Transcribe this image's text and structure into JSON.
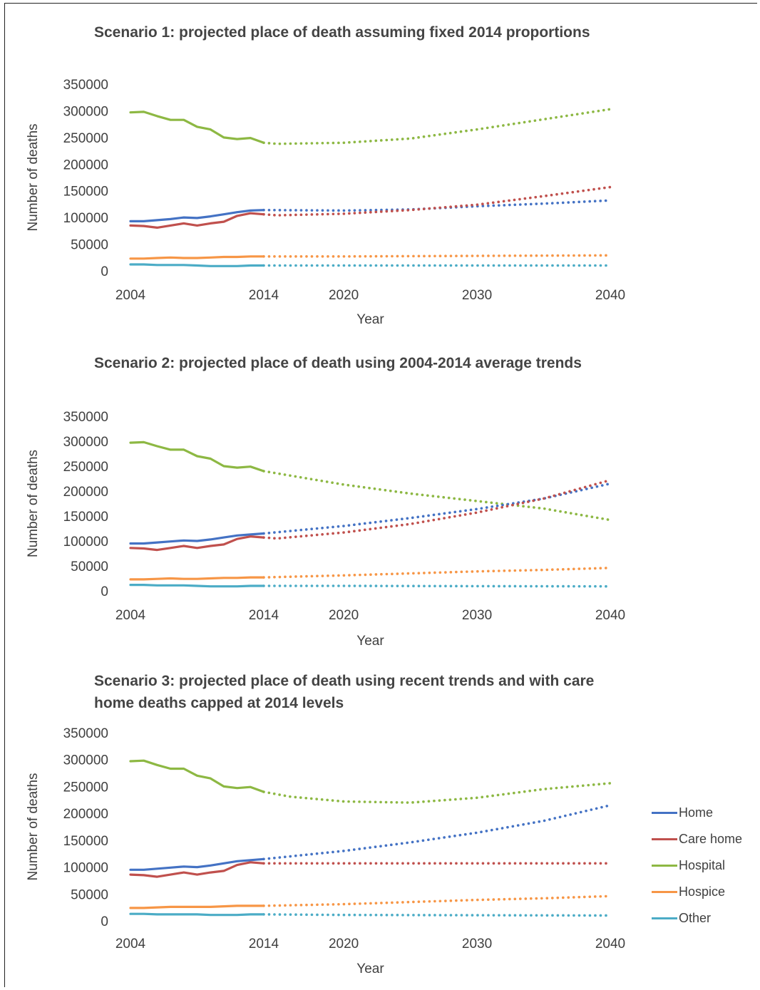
{
  "colors": {
    "Home": "#4472c4",
    "Care home": "#c0504d",
    "Hospital": "#8db843",
    "Hospice": "#f79646",
    "Other": "#4bacc6"
  },
  "legend": [
    "Home",
    "Care home",
    "Hospital",
    "Hospice",
    "Other"
  ],
  "chart_data": [
    {
      "type": "line",
      "title": "Scenario 1: projected place of death assuming fixed 2014 proportions",
      "xlabel": "Year",
      "ylabel": "Number of deaths",
      "xticks": [
        2004,
        2014,
        2020,
        2030,
        2040
      ],
      "yticks": [
        0,
        50000,
        100000,
        150000,
        200000,
        250000,
        300000,
        350000
      ],
      "xlim": [
        2004,
        2040
      ],
      "ylim": [
        0,
        350000
      ],
      "solid_until": 2014,
      "series": [
        {
          "name": "Hospital",
          "points": [
            [
              2004,
              297000
            ],
            [
              2005,
              298000
            ],
            [
              2006,
              290000
            ],
            [
              2007,
              283000
            ],
            [
              2008,
              283000
            ],
            [
              2009,
              270000
            ],
            [
              2010,
              265000
            ],
            [
              2011,
              250000
            ],
            [
              2012,
              247000
            ],
            [
              2013,
              249000
            ],
            [
              2014,
              240000
            ],
            [
              2015,
              238000
            ],
            [
              2020,
              240000
            ],
            [
              2025,
              248000
            ],
            [
              2030,
              265000
            ],
            [
              2035,
              284000
            ],
            [
              2040,
              303000
            ]
          ]
        },
        {
          "name": "Home",
          "points": [
            [
              2004,
              93000
            ],
            [
              2005,
              93000
            ],
            [
              2006,
              95000
            ],
            [
              2007,
              97000
            ],
            [
              2008,
              100000
            ],
            [
              2009,
              99000
            ],
            [
              2010,
              102000
            ],
            [
              2011,
              106000
            ],
            [
              2012,
              110000
            ],
            [
              2013,
              113000
            ],
            [
              2014,
              114000
            ],
            [
              2020,
              113000
            ],
            [
              2025,
              115000
            ],
            [
              2030,
              121000
            ],
            [
              2035,
              126000
            ],
            [
              2040,
              132000
            ]
          ]
        },
        {
          "name": "Care home",
          "points": [
            [
              2004,
              85000
            ],
            [
              2005,
              84000
            ],
            [
              2006,
              81000
            ],
            [
              2007,
              85000
            ],
            [
              2008,
              89000
            ],
            [
              2009,
              85000
            ],
            [
              2010,
              89000
            ],
            [
              2011,
              92000
            ],
            [
              2012,
              103000
            ],
            [
              2013,
              108000
            ],
            [
              2014,
              106000
            ],
            [
              2015,
              104000
            ],
            [
              2020,
              107000
            ],
            [
              2025,
              114000
            ],
            [
              2030,
              124000
            ],
            [
              2035,
              140000
            ],
            [
              2040,
              157000
            ]
          ]
        },
        {
          "name": "Hospice",
          "points": [
            [
              2004,
              23000
            ],
            [
              2005,
              23000
            ],
            [
              2006,
              24000
            ],
            [
              2007,
              25000
            ],
            [
              2008,
              24000
            ],
            [
              2009,
              24000
            ],
            [
              2010,
              25000
            ],
            [
              2011,
              26000
            ],
            [
              2012,
              26000
            ],
            [
              2013,
              27000
            ],
            [
              2014,
              27000
            ],
            [
              2020,
              27000
            ],
            [
              2030,
              28000
            ],
            [
              2040,
              29000
            ]
          ]
        },
        {
          "name": "Other",
          "points": [
            [
              2004,
              12000
            ],
            [
              2005,
              12000
            ],
            [
              2006,
              11000
            ],
            [
              2007,
              11000
            ],
            [
              2008,
              11000
            ],
            [
              2009,
              10000
            ],
            [
              2010,
              9000
            ],
            [
              2011,
              9000
            ],
            [
              2012,
              9000
            ],
            [
              2013,
              10000
            ],
            [
              2014,
              10000
            ],
            [
              2020,
              10000
            ],
            [
              2030,
              10000
            ],
            [
              2040,
              10000
            ]
          ]
        }
      ]
    },
    {
      "type": "line",
      "title": "Scenario 2: projected place of death using 2004-2014 average trends",
      "xlabel": "Year",
      "ylabel": "Number of deaths",
      "xticks": [
        2004,
        2014,
        2020,
        2030,
        2040
      ],
      "yticks": [
        0,
        50000,
        100000,
        150000,
        200000,
        250000,
        300000,
        350000
      ],
      "xlim": [
        2004,
        2040
      ],
      "ylim": [
        0,
        350000
      ],
      "solid_until": 2014,
      "series": [
        {
          "name": "Hospital",
          "points": [
            [
              2004,
              297000
            ],
            [
              2005,
              298000
            ],
            [
              2006,
              290000
            ],
            [
              2007,
              283000
            ],
            [
              2008,
              283000
            ],
            [
              2009,
              270000
            ],
            [
              2010,
              265000
            ],
            [
              2011,
              250000
            ],
            [
              2012,
              247000
            ],
            [
              2013,
              249000
            ],
            [
              2014,
              240000
            ],
            [
              2020,
              213000
            ],
            [
              2025,
              195000
            ],
            [
              2030,
              180000
            ],
            [
              2035,
              165000
            ],
            [
              2040,
              142000
            ]
          ]
        },
        {
          "name": "Home",
          "points": [
            [
              2004,
              95000
            ],
            [
              2005,
              95000
            ],
            [
              2006,
              97000
            ],
            [
              2007,
              99000
            ],
            [
              2008,
              101000
            ],
            [
              2009,
              100000
            ],
            [
              2010,
              103000
            ],
            [
              2011,
              107000
            ],
            [
              2012,
              111000
            ],
            [
              2013,
              113000
            ],
            [
              2014,
              115000
            ],
            [
              2020,
              130000
            ],
            [
              2025,
              146000
            ],
            [
              2030,
              164000
            ],
            [
              2035,
              185000
            ],
            [
              2040,
              215000
            ]
          ]
        },
        {
          "name": "Care home",
          "points": [
            [
              2004,
              86000
            ],
            [
              2005,
              85000
            ],
            [
              2006,
              82000
            ],
            [
              2007,
              86000
            ],
            [
              2008,
              90000
            ],
            [
              2009,
              86000
            ],
            [
              2010,
              90000
            ],
            [
              2011,
              93000
            ],
            [
              2012,
              104000
            ],
            [
              2013,
              109000
            ],
            [
              2014,
              107000
            ],
            [
              2015,
              105000
            ],
            [
              2020,
              117000
            ],
            [
              2025,
              134000
            ],
            [
              2030,
              157000
            ],
            [
              2035,
              185000
            ],
            [
              2040,
              222000
            ]
          ]
        },
        {
          "name": "Hospice",
          "points": [
            [
              2004,
              23000
            ],
            [
              2005,
              23000
            ],
            [
              2006,
              24000
            ],
            [
              2007,
              25000
            ],
            [
              2008,
              24000
            ],
            [
              2009,
              24000
            ],
            [
              2010,
              25000
            ],
            [
              2011,
              26000
            ],
            [
              2012,
              26000
            ],
            [
              2013,
              27000
            ],
            [
              2014,
              27000
            ],
            [
              2020,
              31000
            ],
            [
              2025,
              35000
            ],
            [
              2030,
              39000
            ],
            [
              2035,
              42000
            ],
            [
              2040,
              46000
            ]
          ]
        },
        {
          "name": "Other",
          "points": [
            [
              2004,
              12000
            ],
            [
              2005,
              12000
            ],
            [
              2006,
              11000
            ],
            [
              2007,
              11000
            ],
            [
              2008,
              11000
            ],
            [
              2009,
              10000
            ],
            [
              2010,
              9000
            ],
            [
              2011,
              9000
            ],
            [
              2012,
              9000
            ],
            [
              2013,
              10000
            ],
            [
              2014,
              10000
            ],
            [
              2020,
              10000
            ],
            [
              2030,
              9500
            ],
            [
              2040,
              9000
            ]
          ]
        }
      ]
    },
    {
      "type": "line",
      "title": "Scenario 3: projected place of death using recent trends and with care home deaths capped at 2014 levels",
      "xlabel": "Year",
      "ylabel": "Number of deaths",
      "xticks": [
        2004,
        2014,
        2020,
        2030,
        2040
      ],
      "yticks": [
        0,
        50000,
        100000,
        150000,
        200000,
        250000,
        300000,
        350000
      ],
      "xlim": [
        2004,
        2040
      ],
      "ylim": [
        0,
        350000
      ],
      "solid_until": 2014,
      "series": [
        {
          "name": "Hospital",
          "points": [
            [
              2004,
              297000
            ],
            [
              2005,
              298000
            ],
            [
              2006,
              290000
            ],
            [
              2007,
              283000
            ],
            [
              2008,
              283000
            ],
            [
              2009,
              270000
            ],
            [
              2010,
              265000
            ],
            [
              2011,
              250000
            ],
            [
              2012,
              247000
            ],
            [
              2013,
              249000
            ],
            [
              2014,
              240000
            ],
            [
              2016,
              231000
            ],
            [
              2020,
              222000
            ],
            [
              2025,
              220000
            ],
            [
              2030,
              229000
            ],
            [
              2035,
              245000
            ],
            [
              2040,
              256000
            ]
          ]
        },
        {
          "name": "Home",
          "points": [
            [
              2004,
              95000
            ],
            [
              2005,
              95000
            ],
            [
              2006,
              97000
            ],
            [
              2007,
              99000
            ],
            [
              2008,
              101000
            ],
            [
              2009,
              100000
            ],
            [
              2010,
              103000
            ],
            [
              2011,
              107000
            ],
            [
              2012,
              111000
            ],
            [
              2013,
              113000
            ],
            [
              2014,
              115000
            ],
            [
              2020,
              130000
            ],
            [
              2025,
              146000
            ],
            [
              2030,
              164000
            ],
            [
              2035,
              186000
            ],
            [
              2040,
              215000
            ]
          ]
        },
        {
          "name": "Care home",
          "points": [
            [
              2004,
              86000
            ],
            [
              2005,
              85000
            ],
            [
              2006,
              82000
            ],
            [
              2007,
              86000
            ],
            [
              2008,
              90000
            ],
            [
              2009,
              86000
            ],
            [
              2010,
              90000
            ],
            [
              2011,
              93000
            ],
            [
              2012,
              104000
            ],
            [
              2013,
              109000
            ],
            [
              2014,
              107000
            ],
            [
              2020,
              107000
            ],
            [
              2030,
              107000
            ],
            [
              2040,
              107000
            ]
          ]
        },
        {
          "name": "Hospice",
          "points": [
            [
              2004,
              24000
            ],
            [
              2005,
              24000
            ],
            [
              2006,
              25000
            ],
            [
              2007,
              26000
            ],
            [
              2008,
              26000
            ],
            [
              2009,
              26000
            ],
            [
              2010,
              26000
            ],
            [
              2011,
              27000
            ],
            [
              2012,
              28000
            ],
            [
              2013,
              28000
            ],
            [
              2014,
              28000
            ],
            [
              2020,
              31000
            ],
            [
              2025,
              35000
            ],
            [
              2030,
              39000
            ],
            [
              2035,
              42000
            ],
            [
              2040,
              46000
            ]
          ]
        },
        {
          "name": "Other",
          "points": [
            [
              2004,
              13000
            ],
            [
              2005,
              13000
            ],
            [
              2006,
              12000
            ],
            [
              2007,
              12000
            ],
            [
              2008,
              12000
            ],
            [
              2009,
              12000
            ],
            [
              2010,
              11000
            ],
            [
              2011,
              11000
            ],
            [
              2012,
              11000
            ],
            [
              2013,
              12000
            ],
            [
              2014,
              12000
            ],
            [
              2020,
              11000
            ],
            [
              2030,
              10500
            ],
            [
              2040,
              10000
            ]
          ]
        }
      ]
    }
  ]
}
